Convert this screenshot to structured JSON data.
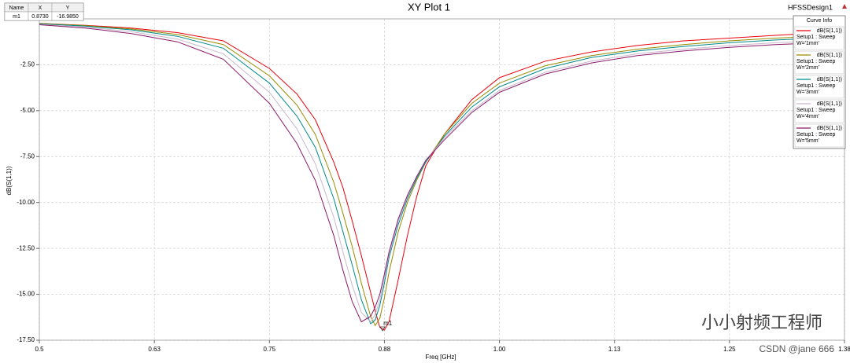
{
  "chart_data": {
    "type": "line",
    "title": "XY Plot 1",
    "design": "HFSSDesign1",
    "x_label": "Freq [GHz]",
    "y_label": "dB(S(1,1))",
    "x": [
      0.5,
      0.55,
      0.6,
      0.65,
      0.7,
      0.75,
      0.78,
      0.8,
      0.82,
      0.83,
      0.84,
      0.85,
      0.86,
      0.865,
      0.87,
      0.875,
      0.88,
      0.89,
      0.9,
      0.91,
      0.92,
      0.94,
      0.97,
      1.0,
      1.05,
      1.1,
      1.15,
      1.2,
      1.25,
      1.3,
      1.35
    ],
    "xlim": [
      0.5,
      1.375
    ],
    "xticks": [
      0.5,
      {
        "value": 0.625,
        "label": "0.63"
      },
      0.75,
      {
        "value": 0.875,
        "label": "0.88"
      },
      {
        "value": 1.0,
        "label": "1.00"
      },
      {
        "value": 1.125,
        "label": "1.13"
      },
      1.25,
      {
        "value": 1.375,
        "label": "1.38"
      }
    ],
    "ylim": [
      -17.5,
      0
    ],
    "yticks": [
      {
        "value": -17.5,
        "label": "-17.50"
      },
      {
        "value": -15,
        "label": "-15.00"
      },
      {
        "value": -12.5,
        "label": "-12.50"
      },
      {
        "value": -10,
        "label": "-10.00"
      },
      {
        "value": -7.5,
        "label": "-7.50"
      },
      {
        "value": -5,
        "label": "-5.00"
      },
      {
        "value": -2.5,
        "label": "-2.50"
      }
    ],
    "grid": true,
    "legend_title": "Curve Info",
    "series": [
      {
        "name": "dB(S(1,1))",
        "setup": "Setup1 : Sweep",
        "param": "W='1mm'",
        "color": "#e8000b",
        "values": [
          -0.25,
          -0.35,
          -0.5,
          -0.75,
          -1.2,
          -2.7,
          -4.1,
          -5.5,
          -7.8,
          -9.2,
          -11.0,
          -12.9,
          -14.9,
          -15.9,
          -16.8,
          -16.95,
          -16.5,
          -14.2,
          -11.8,
          -9.7,
          -8.0,
          -6.3,
          -4.4,
          -3.2,
          -2.3,
          -1.8,
          -1.45,
          -1.2,
          -1.05,
          -0.9,
          -0.75
        ]
      },
      {
        "name": "dB(S(1,1))",
        "setup": "Setup1 : Sweep",
        "param": "W='2mm'",
        "color": "#9a8a00",
        "values": [
          -0.25,
          -0.37,
          -0.55,
          -0.85,
          -1.4,
          -3.1,
          -4.7,
          -6.3,
          -8.9,
          -10.6,
          -12.4,
          -14.4,
          -16.2,
          -16.7,
          -16.3,
          -15.2,
          -13.8,
          -11.6,
          -10.0,
          -8.8,
          -7.8,
          -6.3,
          -4.6,
          -3.5,
          -2.55,
          -2.0,
          -1.65,
          -1.4,
          -1.2,
          -1.05,
          -0.95
        ]
      },
      {
        "name": "dB(S(1,1))",
        "setup": "Setup1 : Sweep",
        "param": "W='3mm'",
        "color": "#00898a",
        "values": [
          -0.27,
          -0.4,
          -0.6,
          -0.95,
          -1.6,
          -3.5,
          -5.3,
          -7.0,
          -9.8,
          -11.6,
          -13.4,
          -15.3,
          -16.6,
          -16.4,
          -15.6,
          -14.4,
          -13.0,
          -11.2,
          -9.8,
          -8.7,
          -7.8,
          -6.4,
          -4.8,
          -3.7,
          -2.7,
          -2.1,
          -1.75,
          -1.5,
          -1.3,
          -1.15,
          -1.05
        ]
      },
      {
        "name": "dB(S(1,1))",
        "setup": "Setup1 : Sweep",
        "param": "W='4mm'",
        "color": "#c8b8cc",
        "values": [
          -0.3,
          -0.45,
          -0.7,
          -1.1,
          -1.9,
          -4.0,
          -6.0,
          -7.9,
          -10.8,
          -12.7,
          -14.5,
          -16.0,
          -16.5,
          -16.1,
          -15.3,
          -14.1,
          -12.8,
          -11.0,
          -9.7,
          -8.6,
          -7.7,
          -6.5,
          -5.0,
          -3.9,
          -2.9,
          -2.3,
          -1.9,
          -1.65,
          -1.45,
          -1.3,
          -1.2
        ]
      },
      {
        "name": "dB(S(1,1))",
        "setup": "Setup1 : Sweep",
        "param": "W='5mm'",
        "color": "#8a1a6a",
        "values": [
          -0.32,
          -0.5,
          -0.8,
          -1.25,
          -2.2,
          -4.6,
          -6.8,
          -8.8,
          -11.8,
          -13.7,
          -15.4,
          -16.5,
          -16.2,
          -15.7,
          -15.0,
          -13.9,
          -12.7,
          -10.9,
          -9.6,
          -8.6,
          -7.7,
          -6.6,
          -5.1,
          -4.0,
          -3.0,
          -2.4,
          -2.0,
          -1.75,
          -1.55,
          -1.4,
          -1.3
        ]
      }
    ],
    "marker_table": {
      "headers": [
        "Name",
        "X",
        "Y"
      ],
      "markers": [
        {
          "name": "m1",
          "x": {
            "value": 0.873,
            "label": "0.8730"
          },
          "y": {
            "value": -16.985,
            "label": "-16.9850"
          }
        }
      ]
    },
    "annotations": [
      "小小射频工程师",
      "CSDN @jane 666"
    ]
  }
}
